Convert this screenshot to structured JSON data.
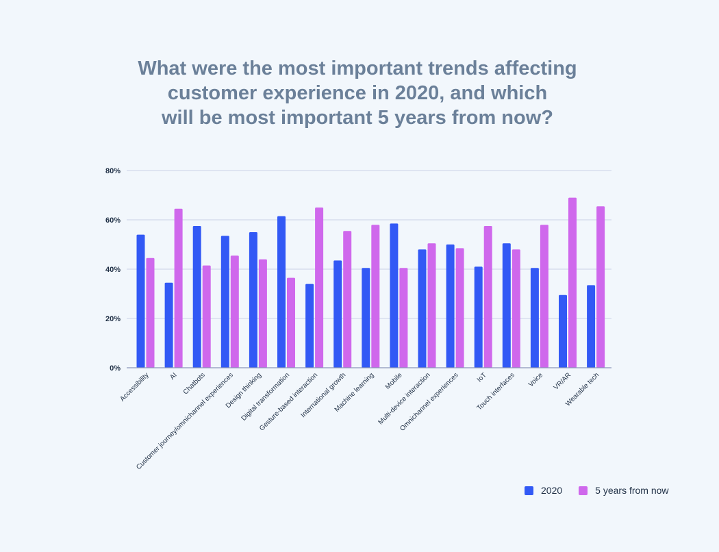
{
  "title_lines": [
    "What were the most important trends affecting",
    "customer experience in 2020, and which",
    "will be most important 5 years from now?"
  ],
  "colors": {
    "series_2020": "#3259f5",
    "series_future": "#cf68ec",
    "grid": "#c9d2e6",
    "text": "#1f2f45",
    "title": "#6b8099"
  },
  "chart_data": {
    "type": "bar",
    "title": "What were the most important trends affecting customer experience in 2020, and which will be most important 5 years from now?",
    "categories": [
      "Accessibility",
      "AI",
      "Chatbots",
      "Customer journey/omnichannel experiences",
      "Design thinking",
      "Digital transformation",
      "Gesture-based interaction",
      "International growth",
      "Machine learning",
      "Mobile",
      "Multi-device interaction",
      "Omnichannel experiences",
      "IoT",
      "Touch interfaces",
      "Voice",
      "VR/AR",
      "Wearable tech"
    ],
    "series": [
      {
        "name": "2020",
        "values": [
          54,
          34.5,
          57.5,
          53.5,
          55,
          61.5,
          34,
          43.5,
          40.5,
          58.5,
          48,
          50,
          41,
          50.5,
          40.5,
          29.5,
          33.5
        ]
      },
      {
        "name": "5 years from now",
        "values": [
          44.5,
          64.5,
          41.5,
          45.5,
          44,
          36.5,
          65,
          55.5,
          58,
          40.5,
          50.5,
          48.5,
          57.5,
          48,
          58,
          69,
          65.5
        ]
      }
    ],
    "ylim": [
      0,
      80
    ],
    "yticks": [
      0,
      20,
      40,
      60,
      80
    ],
    "ytick_labels": [
      "0%",
      "20%",
      "40%",
      "60%",
      "80%"
    ],
    "xlabel": "",
    "ylabel": "",
    "grid": true,
    "legend_position": "bottom-right"
  }
}
